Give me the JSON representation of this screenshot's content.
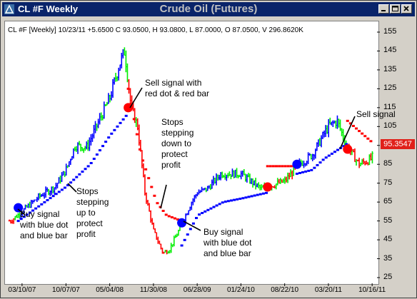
{
  "window": {
    "title": "CL #F Weekly",
    "chart_title": "Crude Oil (Futures)",
    "icons": [
      "app-icon",
      "minimize-icon",
      "maximize-icon",
      "close-icon"
    ]
  },
  "info_line": "CL #F [Weekly] 10/23/11 +5.6500 C 93.0500, H 93.0800, L 87.0000, O 87.0500, V 296.8620K",
  "price_tag": "95.3547",
  "colors": {
    "up": "#0000ff",
    "neutral": "#00ee00",
    "down": "#ff0000",
    "tag": "#e0201a"
  },
  "annotations": {
    "buy1": "Buy signal\nwith blue dot\nand blue bar",
    "stops_up": "Stops\nstepping\nup to\nprotect\nprofit",
    "sell1": "Sell signal with\nred dot & red bar",
    "stops_down": "Stops\nstepping\ndown to\nprotect\nprofit",
    "buy2": "Buy signal\nwith blue dot\nand blue bar",
    "sell2": "Sell signal"
  },
  "chart_data": {
    "type": "bar",
    "title": "Crude Oil (Futures)",
    "ylim": [
      25,
      155
    ],
    "yticks": [
      155,
      145,
      135,
      125,
      115,
      105,
      95,
      85,
      75,
      65,
      55,
      45,
      35,
      25
    ],
    "xticks": [
      "03/10/07",
      "10/07/07",
      "05/04/08",
      "11/30/08",
      "06/28/09",
      "01/24/10",
      "08/22/10",
      "03/20/11",
      "10/16/11"
    ],
    "price_path": [
      [
        "2007-01-15",
        55
      ],
      [
        "2007-03-10",
        60
      ],
      [
        "2007-06-01",
        68
      ],
      [
        "2007-08-15",
        73
      ],
      [
        "2007-10-07",
        82
      ],
      [
        "2007-11-20",
        95
      ],
      [
        "2008-01-15",
        94
      ],
      [
        "2008-03-01",
        105
      ],
      [
        "2008-05-04",
        120
      ],
      [
        "2008-06-20",
        138
      ],
      [
        "2008-07-15",
        145
      ],
      [
        "2008-08-15",
        115
      ],
      [
        "2008-09-15",
        105
      ],
      [
        "2008-10-20",
        70
      ],
      [
        "2008-11-30",
        50
      ],
      [
        "2009-01-15",
        38
      ],
      [
        "2009-02-15",
        40
      ],
      [
        "2009-04-01",
        50
      ],
      [
        "2009-06-01",
        65
      ],
      [
        "2009-06-28",
        70
      ],
      [
        "2009-08-15",
        72
      ],
      [
        "2009-10-20",
        80
      ],
      [
        "2010-01-24",
        80
      ],
      [
        "2010-05-01",
        72
      ],
      [
        "2010-08-22",
        76
      ],
      [
        "2010-11-01",
        85
      ],
      [
        "2011-01-01",
        90
      ],
      [
        "2011-03-20",
        105
      ],
      [
        "2011-05-01",
        108
      ],
      [
        "2011-06-15",
        95
      ],
      [
        "2011-08-15",
        85
      ],
      [
        "2011-10-16",
        88
      ],
      [
        "2011-10-23",
        93.05
      ]
    ],
    "signals": [
      {
        "type": "buy",
        "date": "2007-02-20",
        "price": 62
      },
      {
        "type": "sell",
        "date": "2008-08-01",
        "price": 115
      },
      {
        "type": "buy",
        "date": "2009-04-15",
        "price": 54
      },
      {
        "type": "sell",
        "date": "2010-06-01",
        "price": 73
      },
      {
        "type": "buy",
        "date": "2010-10-20",
        "price": 85
      },
      {
        "type": "sell",
        "date": "2011-06-20",
        "price": 93
      }
    ],
    "stops": [
      {
        "side": "long",
        "from": "2007-02-20",
        "to": "2008-08-01",
        "path": [
          [
            "2007-02-20",
            55
          ],
          [
            "2007-10-07",
            73
          ],
          [
            "2008-02-01",
            85
          ],
          [
            "2008-05-04",
            100
          ],
          [
            "2008-08-01",
            112
          ]
        ]
      },
      {
        "side": "short",
        "from": "2008-08-01",
        "to": "2009-04-15",
        "path": [
          [
            "2008-08-01",
            125
          ],
          [
            "2008-10-01",
            90
          ],
          [
            "2008-12-15",
            65
          ],
          [
            "2009-02-01",
            58
          ],
          [
            "2009-04-15",
            55
          ]
        ]
      },
      {
        "side": "long",
        "from": "2009-04-15",
        "to": "2010-06-01",
        "path": [
          [
            "2009-04-15",
            42
          ],
          [
            "2009-07-01",
            58
          ],
          [
            "2009-11-01",
            65
          ],
          [
            "2010-02-01",
            67
          ],
          [
            "2010-06-01",
            70
          ]
        ]
      },
      {
        "side": "short",
        "from": "2010-06-01",
        "to": "2010-10-20",
        "path": [
          [
            "2010-06-01",
            84
          ],
          [
            "2010-10-20",
            84
          ]
        ]
      },
      {
        "side": "long",
        "from": "2010-10-20",
        "to": "2011-06-20",
        "path": [
          [
            "2010-10-20",
            80
          ],
          [
            "2011-01-01",
            82
          ],
          [
            "2011-03-01",
            88
          ],
          [
            "2011-06-20",
            96
          ]
        ]
      },
      {
        "side": "short",
        "from": "2011-06-20",
        "to": "2011-10-23",
        "path": [
          [
            "2011-06-20",
            108
          ],
          [
            "2011-10-23",
            96
          ]
        ]
      }
    ]
  }
}
